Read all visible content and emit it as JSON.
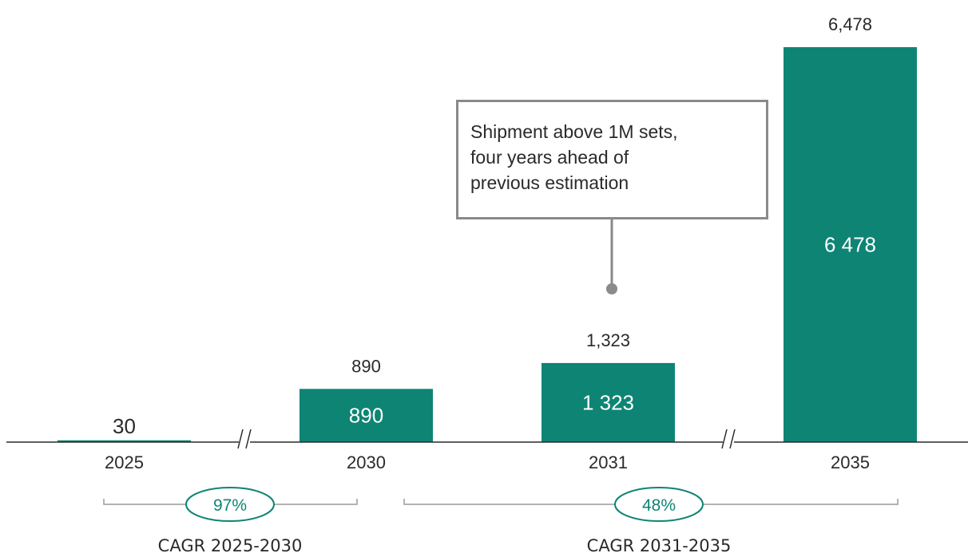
{
  "colors": {
    "bar": "#0e8474",
    "axis": "#2a2a2a",
    "bracket": "#9a9a9a",
    "callout_border": "#8a8a8a",
    "text": "#2a2a2a"
  },
  "chart_data": {
    "type": "bar",
    "categories": [
      "2025",
      "2030",
      "2031",
      "2035"
    ],
    "values": [
      30,
      890,
      1323,
      6478
    ],
    "labels_above": [
      "30",
      "890",
      "1,323",
      "6,478"
    ],
    "labels_inside": [
      "",
      "890",
      "1 323",
      "6 478"
    ],
    "axis_breaks": [
      "between 2025 and 2030",
      "between 2031 and 2035"
    ],
    "annotation": {
      "lines": [
        "Shipment above 1M sets,",
        "four years ahead of",
        "previous estimation"
      ],
      "points_to": "2031"
    },
    "cagr": [
      {
        "value": "97%",
        "label": "CAGR 2025-2030",
        "from": "2025",
        "to": "2030"
      },
      {
        "value": "48%",
        "label": "CAGR 2031-2035",
        "from": "2031",
        "to": "2035"
      }
    ],
    "title": "",
    "xlabel": "",
    "ylabel": "",
    "grid": false,
    "legend": "none"
  }
}
